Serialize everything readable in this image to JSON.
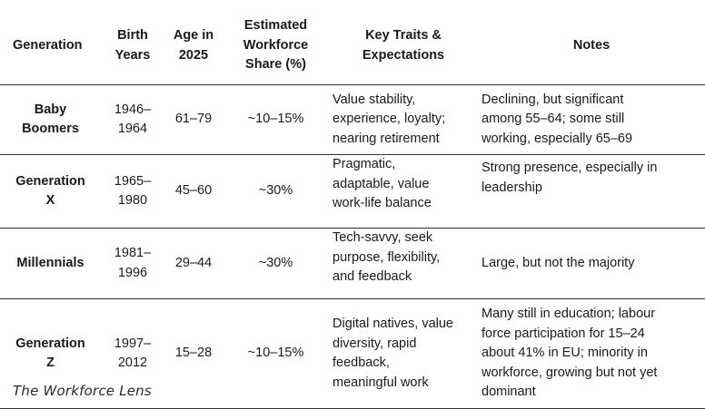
{
  "table": {
    "headers": {
      "generation": "Generation",
      "birth_years": [
        "Birth",
        "Years"
      ],
      "age": [
        "Age in",
        "2025"
      ],
      "share": [
        "Estimated",
        "Workforce",
        "Share (%)"
      ],
      "traits": [
        "Key Traits &",
        "Expectations"
      ],
      "notes": "Notes"
    },
    "rows": [
      {
        "generation": [
          "Baby",
          "Boomers"
        ],
        "birth_years": [
          "1946–",
          "1964"
        ],
        "age": "61–79",
        "share": "~10–15%",
        "traits": [
          "Value stability,",
          "experience, loyalty;",
          "nearing retirement"
        ],
        "notes": [
          "Declining, but significant",
          "among 55–64; some still",
          "working, especially 65–69"
        ]
      },
      {
        "generation": [
          "Generation",
          "X"
        ],
        "birth_years": [
          "1965–",
          "1980"
        ],
        "age": "45–60",
        "share": "~30%",
        "traits": [
          "Pragmatic,",
          "adaptable, value",
          "work-life balance"
        ],
        "notes": [
          "Strong presence, especially in",
          "leadership"
        ]
      },
      {
        "generation": [
          "Millennials"
        ],
        "birth_years": [
          "1981–",
          "1996"
        ],
        "age": "29–44",
        "share": "~30%",
        "traits": [
          "Tech-savvy, seek",
          "purpose, flexibility,",
          "and feedback"
        ],
        "notes": [
          "Large, but not the majority"
        ]
      },
      {
        "generation": [
          "Generation",
          "Z"
        ],
        "birth_years": [
          "1997–",
          "2012"
        ],
        "age": "15–28",
        "share": "~10–15%",
        "traits": [
          "Digital natives, value",
          "diversity, rapid",
          "feedback,",
          "meaningful work"
        ],
        "notes": [
          "Many still in education; labour",
          "force participation for 15–24",
          "about 41% in EU; minority in",
          "workforce, growing but not yet",
          "dominant"
        ]
      }
    ]
  },
  "brand": "The Workforce Lens"
}
